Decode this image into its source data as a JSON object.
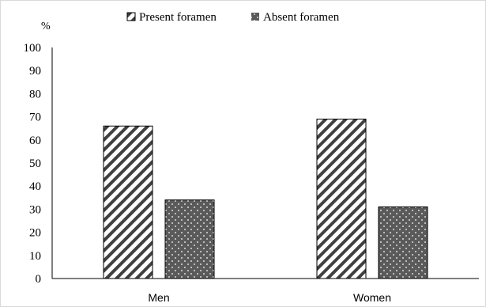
{
  "chart_data": {
    "type": "bar",
    "ylabel": "%",
    "ylim": [
      0,
      100
    ],
    "yticks": [
      "0",
      "10",
      "20",
      "30",
      "40",
      "50",
      "60",
      "70",
      "80",
      "90",
      "100"
    ],
    "categories": [
      "Men",
      "Women"
    ],
    "series": [
      {
        "name": "Present foramen",
        "values": [
          66,
          69
        ],
        "pattern": "diagonal-hatch",
        "color": "#404040"
      },
      {
        "name": "Absent foramen",
        "values": [
          34,
          31
        ],
        "pattern": "dotted",
        "color": "#5a5a5a"
      }
    ],
    "legend_position": "top",
    "grid": false
  }
}
